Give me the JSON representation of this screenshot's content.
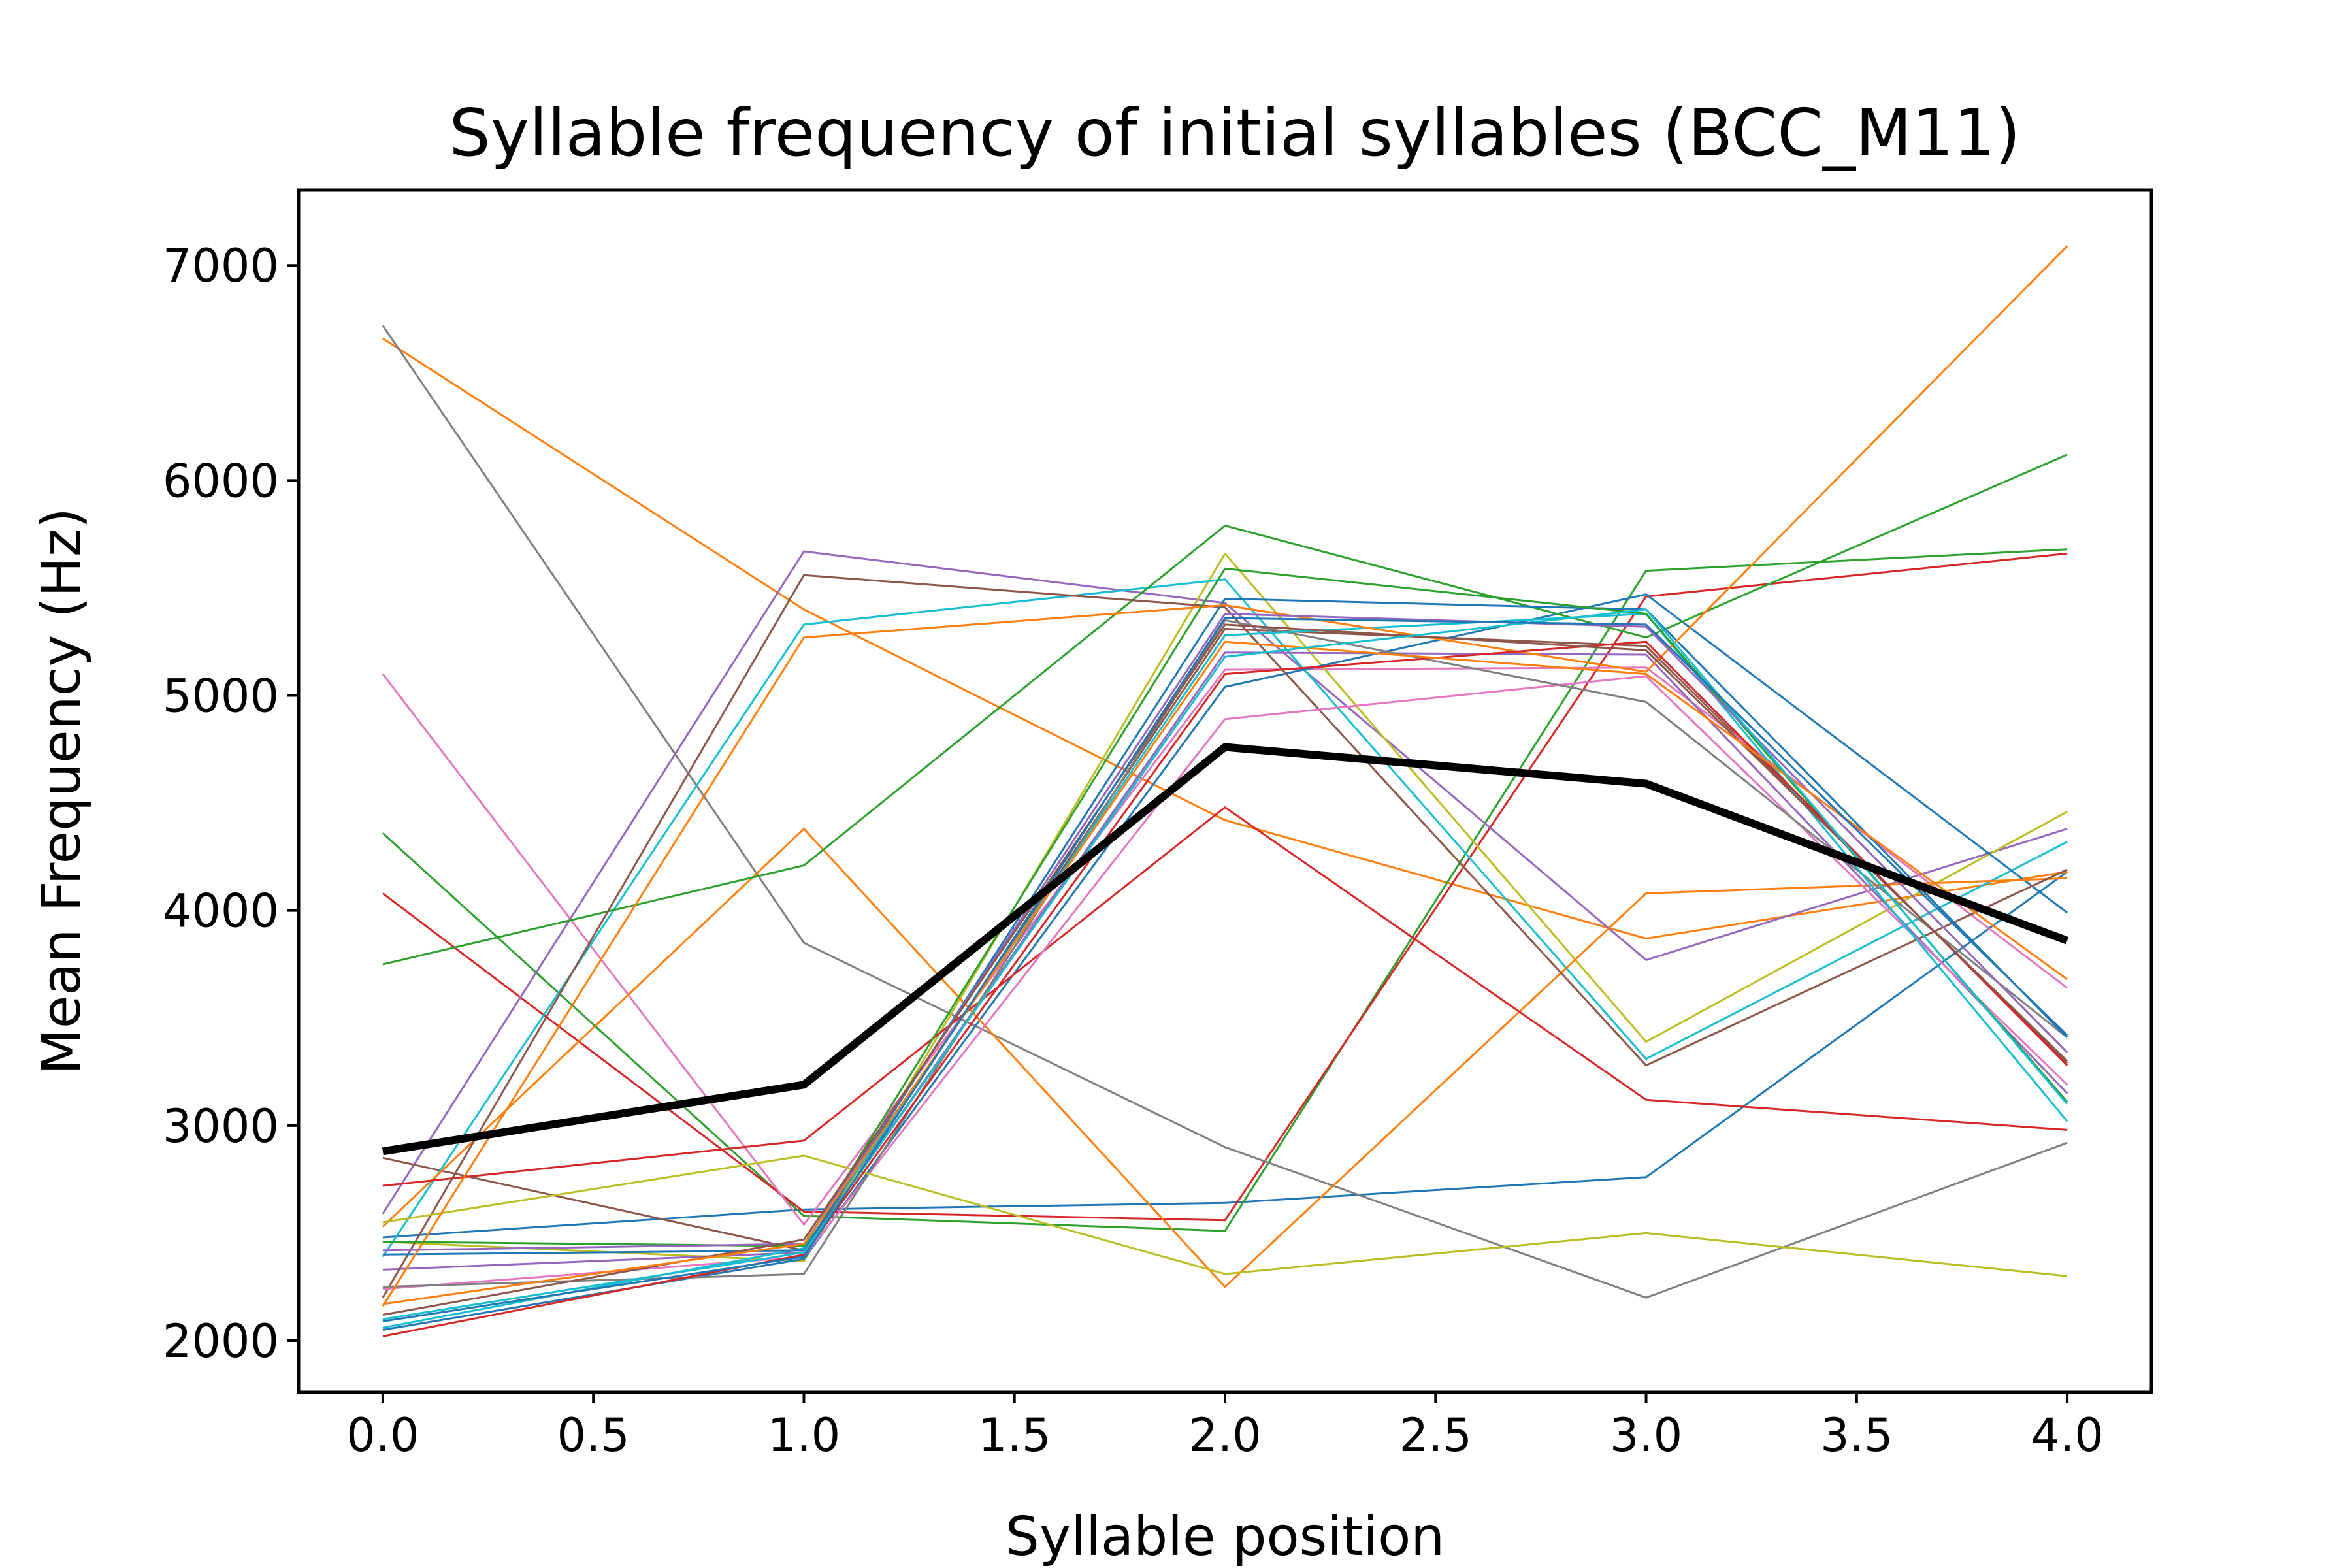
{
  "chart_data": {
    "type": "line",
    "title": "Syllable frequency of initial syllables (BCC_M11)",
    "xlabel": "Syllable position",
    "ylabel": "Mean Frequency (Hz)",
    "xlim": [
      -0.2,
      4.2
    ],
    "ylim": [
      1760,
      7350
    ],
    "x": [
      0,
      1,
      2,
      3,
      4
    ],
    "x_ticks": [
      0.0,
      0.5,
      1.0,
      1.5,
      2.0,
      2.5,
      3.0,
      3.5,
      4.0
    ],
    "x_tick_labels": [
      "0.0",
      "0.5",
      "1.0",
      "1.5",
      "2.0",
      "2.5",
      "3.0",
      "3.5",
      "4.0"
    ],
    "y_ticks": [
      2000,
      3000,
      4000,
      5000,
      6000,
      7000
    ],
    "y_tick_labels": [
      "2000",
      "3000",
      "4000",
      "5000",
      "6000",
      "7000"
    ],
    "grid": false,
    "legend": "none",
    "series": [
      {
        "color": "#1f77b4",
        "values": [
          2480,
          2610,
          2640,
          2760,
          4180
        ]
      },
      {
        "color": "#ff7f0e",
        "values": [
          6660,
          5400,
          4420,
          3870,
          4180
        ]
      },
      {
        "color": "#2ca02c",
        "values": [
          4360,
          2580,
          2510,
          5580,
          5680
        ]
      },
      {
        "color": "#d62728",
        "values": [
          4080,
          2600,
          2560,
          5460,
          5660
        ]
      },
      {
        "color": "#9467bd",
        "values": [
          2590,
          5670,
          5430,
          3770,
          4380
        ]
      },
      {
        "color": "#8c564b",
        "values": [
          2850,
          2420,
          5310,
          5230,
          3290
        ]
      },
      {
        "color": "#e377c2",
        "values": [
          5100,
          2540,
          5120,
          5130,
          3640
        ]
      },
      {
        "color": "#7f7f7f",
        "values": [
          6720,
          3850,
          2900,
          2200,
          2920
        ]
      },
      {
        "color": "#bcbd22",
        "values": [
          2460,
          2370,
          5660,
          3390,
          4460
        ]
      },
      {
        "color": "#17becf",
        "values": [
          2390,
          5330,
          5540,
          3310,
          4320
        ]
      },
      {
        "color": "#1f77b4",
        "values": [
          2050,
          2380,
          5040,
          5470,
          3990
        ]
      },
      {
        "color": "#ff7f0e",
        "values": [
          2530,
          4380,
          2250,
          4080,
          4150
        ]
      },
      {
        "color": "#2ca02c",
        "values": [
          3750,
          4210,
          5790,
          5270,
          6120
        ]
      },
      {
        "color": "#d62728",
        "values": [
          2720,
          2930,
          4480,
          3120,
          2980
        ]
      },
      {
        "color": "#9467bd",
        "values": [
          2330,
          2410,
          5200,
          5190,
          3150
        ]
      },
      {
        "color": "#8c564b",
        "values": [
          2200,
          5560,
          5410,
          3280,
          4190
        ]
      },
      {
        "color": "#e377c2",
        "values": [
          2240,
          2390,
          4890,
          5090,
          3190
        ]
      },
      {
        "color": "#7f7f7f",
        "values": [
          2250,
          2310,
          5350,
          4970,
          3410
        ]
      },
      {
        "color": "#bcbd22",
        "values": [
          2550,
          2860,
          2310,
          2500,
          2300
        ]
      },
      {
        "color": "#17becf",
        "values": [
          2060,
          2430,
          5280,
          5380,
          3020
        ]
      },
      {
        "color": "#1f77b4",
        "values": [
          2400,
          2420,
          5450,
          5400,
          3410
        ]
      },
      {
        "color": "#ff7f0e",
        "values": [
          2160,
          5270,
          5420,
          5110,
          7090
        ]
      },
      {
        "color": "#2ca02c",
        "values": [
          2460,
          2440,
          5590,
          5380,
          3110
        ]
      },
      {
        "color": "#d62728",
        "values": [
          2020,
          2400,
          5100,
          5250,
          3280
        ]
      },
      {
        "color": "#9467bd",
        "values": [
          2420,
          2450,
          5380,
          5320,
          3340
        ]
      },
      {
        "color": "#8c564b",
        "values": [
          2120,
          2470,
          5330,
          5210,
          3300
        ]
      },
      {
        "color": "#ff7f0e",
        "values": [
          2170,
          2450,
          5250,
          5100,
          3680
        ]
      },
      {
        "color": "#17becf",
        "values": [
          2100,
          2410,
          5180,
          5400,
          3100
        ]
      },
      {
        "color": "#1f77b4",
        "values": [
          2090,
          2390,
          5360,
          5330,
          3420
        ]
      },
      {
        "name": "",
        "color": "#000000",
        "mean": true,
        "values": [
          2880,
          3190,
          4760,
          4590,
          3860
        ]
      }
    ]
  }
}
